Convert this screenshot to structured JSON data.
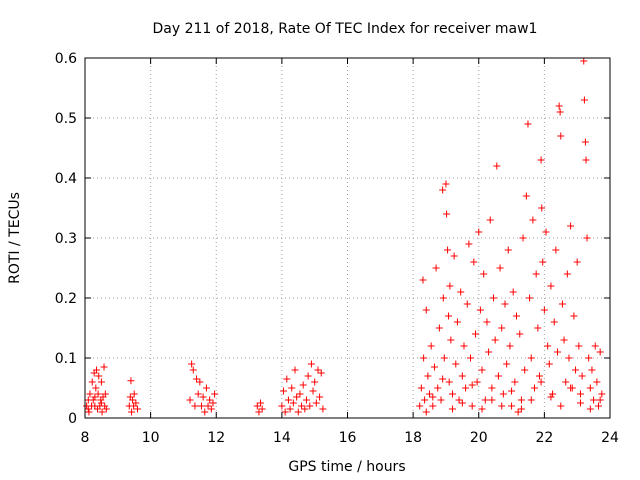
{
  "chart_data": {
    "type": "scatter",
    "title": "Day 211 of 2018, Rate Of TEC Index for receiver maw1",
    "xlabel": "GPS time / hours",
    "ylabel": "ROTI / TECUs",
    "xlim": [
      8,
      24
    ],
    "ylim": [
      0,
      0.6
    ],
    "xticks": [
      8,
      10,
      12,
      14,
      16,
      18,
      20,
      22,
      24
    ],
    "yticks": [
      0,
      0.1,
      0.2,
      0.3,
      0.4,
      0.5,
      0.6
    ],
    "xtick_labels": [
      "8",
      "10",
      "12",
      "14",
      "16",
      "18",
      "20",
      "22",
      "24"
    ],
    "ytick_labels": [
      "0",
      "0.1",
      "0.2",
      "0.3",
      "0.4",
      "0.5",
      "0.6"
    ],
    "grid": true,
    "marker": "plus",
    "color": "#ff0000",
    "series": [
      {
        "name": "ROTI",
        "points": [
          [
            8.05,
            0.02
          ],
          [
            8.1,
            0.03
          ],
          [
            8.12,
            0.01
          ],
          [
            8.15,
            0.04
          ],
          [
            8.2,
            0.02
          ],
          [
            8.22,
            0.06
          ],
          [
            8.25,
            0.03
          ],
          [
            8.28,
            0.075
          ],
          [
            8.3,
            0.02
          ],
          [
            8.33,
            0.05
          ],
          [
            8.35,
            0.08
          ],
          [
            8.38,
            0.015
          ],
          [
            8.4,
            0.04
          ],
          [
            8.42,
            0.07
          ],
          [
            8.45,
            0.02
          ],
          [
            8.48,
            0.03
          ],
          [
            8.5,
            0.06
          ],
          [
            8.52,
            0.01
          ],
          [
            8.55,
            0.035
          ],
          [
            8.58,
            0.085
          ],
          [
            8.6,
            0.02
          ],
          [
            8.62,
            0.04
          ],
          [
            8.65,
            0.015
          ],
          [
            8.1,
            0.015
          ],
          [
            8.3,
            0.035
          ],
          [
            8.5,
            0.025
          ],
          [
            9.35,
            0.02
          ],
          [
            9.38,
            0.035
          ],
          [
            9.4,
            0.062
          ],
          [
            9.42,
            0.01
          ],
          [
            9.45,
            0.03
          ],
          [
            9.48,
            0.02
          ],
          [
            9.5,
            0.04
          ],
          [
            9.55,
            0.025
          ],
          [
            9.6,
            0.015
          ],
          [
            11.2,
            0.03
          ],
          [
            11.25,
            0.09
          ],
          [
            11.3,
            0.08
          ],
          [
            11.35,
            0.02
          ],
          [
            11.4,
            0.065
          ],
          [
            11.45,
            0.04
          ],
          [
            11.5,
            0.06
          ],
          [
            11.55,
            0.02
          ],
          [
            11.6,
            0.035
          ],
          [
            11.65,
            0.01
          ],
          [
            11.7,
            0.05
          ],
          [
            11.75,
            0.02
          ],
          [
            11.8,
            0.03
          ],
          [
            11.85,
            0.015
          ],
          [
            11.9,
            0.025
          ],
          [
            11.95,
            0.04
          ],
          [
            13.25,
            0.02
          ],
          [
            13.3,
            0.01
          ],
          [
            13.35,
            0.025
          ],
          [
            13.4,
            0.015
          ],
          [
            14.0,
            0.02
          ],
          [
            14.05,
            0.045
          ],
          [
            14.1,
            0.01
          ],
          [
            14.15,
            0.065
          ],
          [
            14.2,
            0.03
          ],
          [
            14.25,
            0.015
          ],
          [
            14.3,
            0.05
          ],
          [
            14.35,
            0.025
          ],
          [
            14.4,
            0.08
          ],
          [
            14.45,
            0.035
          ],
          [
            14.5,
            0.01
          ],
          [
            14.55,
            0.04
          ],
          [
            14.6,
            0.02
          ],
          [
            14.65,
            0.055
          ],
          [
            14.7,
            0.015
          ],
          [
            14.75,
            0.03
          ],
          [
            14.8,
            0.07
          ],
          [
            14.85,
            0.02
          ],
          [
            14.9,
            0.09
          ],
          [
            14.95,
            0.045
          ],
          [
            15.0,
            0.06
          ],
          [
            15.05,
            0.025
          ],
          [
            15.1,
            0.08
          ],
          [
            15.15,
            0.035
          ],
          [
            15.2,
            0.075
          ],
          [
            15.25,
            0.015
          ],
          [
            18.2,
            0.02
          ],
          [
            18.25,
            0.05
          ],
          [
            18.3,
            0.23
          ],
          [
            18.32,
            0.1
          ],
          [
            18.35,
            0.03
          ],
          [
            18.4,
            0.18
          ],
          [
            18.45,
            0.07
          ],
          [
            18.5,
            0.04
          ],
          [
            18.55,
            0.12
          ],
          [
            18.6,
            0.02
          ],
          [
            18.65,
            0.085
          ],
          [
            18.7,
            0.25
          ],
          [
            18.75,
            0.05
          ],
          [
            18.8,
            0.15
          ],
          [
            18.85,
            0.03
          ],
          [
            18.9,
            0.38
          ],
          [
            18.92,
            0.2
          ],
          [
            18.95,
            0.1
          ],
          [
            19.0,
            0.39
          ],
          [
            19.02,
            0.34
          ],
          [
            19.05,
            0.28
          ],
          [
            19.08,
            0.17
          ],
          [
            19.1,
            0.06
          ],
          [
            19.12,
            0.22
          ],
          [
            19.15,
            0.13
          ],
          [
            19.2,
            0.04
          ],
          [
            19.25,
            0.27
          ],
          [
            19.3,
            0.09
          ],
          [
            19.35,
            0.16
          ],
          [
            19.4,
            0.03
          ],
          [
            19.45,
            0.21
          ],
          [
            19.5,
            0.07
          ],
          [
            19.55,
            0.12
          ],
          [
            19.6,
            0.05
          ],
          [
            19.65,
            0.19
          ],
          [
            19.7,
            0.29
          ],
          [
            19.75,
            0.1
          ],
          [
            19.8,
            0.02
          ],
          [
            19.85,
            0.26
          ],
          [
            19.9,
            0.14
          ],
          [
            19.95,
            0.06
          ],
          [
            20.0,
            0.31
          ],
          [
            20.05,
            0.18
          ],
          [
            20.1,
            0.08
          ],
          [
            20.15,
            0.24
          ],
          [
            20.2,
            0.03
          ],
          [
            20.25,
            0.16
          ],
          [
            20.3,
            0.11
          ],
          [
            20.35,
            0.33
          ],
          [
            20.4,
            0.05
          ],
          [
            20.45,
            0.2
          ],
          [
            20.5,
            0.13
          ],
          [
            20.55,
            0.42
          ],
          [
            20.6,
            0.07
          ],
          [
            20.65,
            0.25
          ],
          [
            20.7,
            0.15
          ],
          [
            20.75,
            0.04
          ],
          [
            20.8,
            0.19
          ],
          [
            20.85,
            0.09
          ],
          [
            20.9,
            0.28
          ],
          [
            20.95,
            0.12
          ],
          [
            21.0,
            0.02
          ],
          [
            21.05,
            0.21
          ],
          [
            21.1,
            0.06
          ],
          [
            21.15,
            0.17
          ],
          [
            21.2,
            0.01
          ],
          [
            21.25,
            0.14
          ],
          [
            21.3,
            0.03
          ],
          [
            21.35,
            0.3
          ],
          [
            21.4,
            0.08
          ],
          [
            21.45,
            0.37
          ],
          [
            21.5,
            0.49
          ],
          [
            21.55,
            0.2
          ],
          [
            21.6,
            0.1
          ],
          [
            21.65,
            0.33
          ],
          [
            21.7,
            0.05
          ],
          [
            21.75,
            0.24
          ],
          [
            21.8,
            0.15
          ],
          [
            21.85,
            0.07
          ],
          [
            21.9,
            0.43
          ],
          [
            21.92,
            0.35
          ],
          [
            21.95,
            0.26
          ],
          [
            22.0,
            0.18
          ],
          [
            22.05,
            0.31
          ],
          [
            22.1,
            0.12
          ],
          [
            22.15,
            0.09
          ],
          [
            22.2,
            0.22
          ],
          [
            22.25,
            0.04
          ],
          [
            22.3,
            0.16
          ],
          [
            22.35,
            0.28
          ],
          [
            22.4,
            0.11
          ],
          [
            22.45,
            0.52
          ],
          [
            22.48,
            0.51
          ],
          [
            22.5,
            0.47
          ],
          [
            22.55,
            0.19
          ],
          [
            22.6,
            0.13
          ],
          [
            22.65,
            0.06
          ],
          [
            22.7,
            0.24
          ],
          [
            22.75,
            0.1
          ],
          [
            22.8,
            0.32
          ],
          [
            22.85,
            0.05
          ],
          [
            22.9,
            0.17
          ],
          [
            22.95,
            0.08
          ],
          [
            23.0,
            0.26
          ],
          [
            23.05,
            0.12
          ],
          [
            23.1,
            0.04
          ],
          [
            23.15,
            0.07
          ],
          [
            23.2,
            0.595
          ],
          [
            23.22,
            0.53
          ],
          [
            23.25,
            0.46
          ],
          [
            23.27,
            0.43
          ],
          [
            23.3,
            0.3
          ],
          [
            23.35,
            0.1
          ],
          [
            23.4,
            0.05
          ],
          [
            23.45,
            0.08
          ],
          [
            23.5,
            0.03
          ],
          [
            23.55,
            0.12
          ],
          [
            23.6,
            0.06
          ],
          [
            23.65,
            0.02
          ],
          [
            23.7,
            0.11
          ],
          [
            23.75,
            0.04
          ],
          [
            18.4,
            0.01
          ],
          [
            18.6,
            0.035
          ],
          [
            18.9,
            0.065
          ],
          [
            19.2,
            0.015
          ],
          [
            19.5,
            0.025
          ],
          [
            19.8,
            0.055
          ],
          [
            20.1,
            0.015
          ],
          [
            20.4,
            0.03
          ],
          [
            20.7,
            0.02
          ],
          [
            21.0,
            0.045
          ],
          [
            21.3,
            0.015
          ],
          [
            21.6,
            0.03
          ],
          [
            21.9,
            0.06
          ],
          [
            22.2,
            0.035
          ],
          [
            22.5,
            0.02
          ],
          [
            22.8,
            0.05
          ],
          [
            23.1,
            0.025
          ],
          [
            23.4,
            0.015
          ],
          [
            23.7,
            0.03
          ]
        ]
      }
    ]
  }
}
